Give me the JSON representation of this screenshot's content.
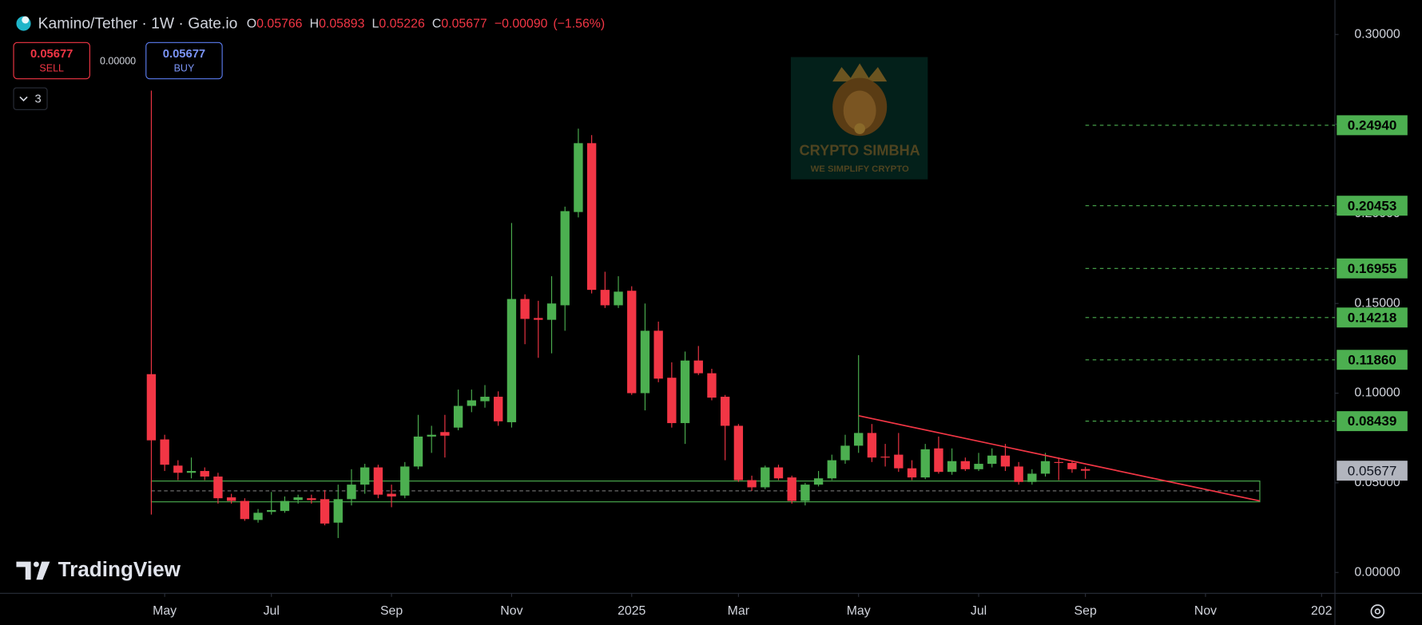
{
  "chart_data": {
    "type": "candlestick",
    "title": "Kamino/Tether · 1W · Gate.io",
    "ohlc_labels": [
      "O",
      "H",
      "L",
      "C"
    ],
    "change": "−0.00090",
    "change_pct": "(−1.56%)",
    "trade_panel": {
      "sell_price": "0.05677",
      "sell_label": "SELL",
      "spread": "0.00000",
      "buy_price": "0.05677",
      "buy_label": "BUY"
    },
    "indicator_count": "3",
    "up_color": "#4caf50",
    "down_color": "#f23645",
    "open": [
      0.1106,
      0.0742,
      0.0596,
      0.0556,
      0.0566,
      0.0535,
      0.0419,
      0.0399,
      0.0293,
      0.0338,
      0.0343,
      0.0404,
      0.0414,
      0.0409,
      0.0278,
      0.0409,
      0.049,
      0.0586,
      0.0439,
      0.0429,
      0.0591,
      0.0758,
      0.0783,
      0.0808,
      0.0929,
      0.0955,
      0.098,
      0.0838,
      0.1525,
      0.1419,
      0.1409,
      0.149,
      0.201,
      0.2394,
      0.1576,
      0.149,
      0.1571,
      0.1,
      0.1348,
      0.1086,
      0.0833,
      0.1182,
      0.1111,
      0.098,
      0.0818,
      0.0515,
      0.0475,
      0.0586,
      0.053,
      0.0399,
      0.049,
      0.0525,
      0.0626,
      0.0707,
      0.0778,
      0.0646,
      0.0657,
      0.0581,
      0.053,
      0.0692,
      0.0561,
      0.0621,
      0.0576,
      0.0606,
      0.0652,
      0.0591,
      0.0505,
      0.0551,
      0.0616,
      0.0611,
      0.05766
    ],
    "high": [
      0.2687,
      0.0768,
      0.0626,
      0.0641,
      0.0586,
      0.0556,
      0.0439,
      0.0414,
      0.0354,
      0.0449,
      0.0424,
      0.0434,
      0.0434,
      0.046,
      0.049,
      0.0576,
      0.0606,
      0.0601,
      0.049,
      0.0616,
      0.0879,
      0.0818,
      0.0879,
      0.102,
      0.102,
      0.1045,
      0.101,
      0.1949,
      0.1551,
      0.1515,
      0.1652,
      0.204,
      0.2475,
      0.2439,
      0.1677,
      0.1652,
      0.1596,
      0.15,
      0.1399,
      0.1172,
      0.1232,
      0.1263,
      0.1136,
      0.099,
      0.0828,
      0.054,
      0.0596,
      0.0601,
      0.054,
      0.05,
      0.0566,
      0.0657,
      0.0768,
      0.1212,
      0.0828,
      0.0717,
      0.0778,
      0.0626,
      0.0717,
      0.0758,
      0.0692,
      0.0641,
      0.0667,
      0.0692,
      0.0717,
      0.0616,
      0.0576,
      0.0667,
      0.0641,
      0.0626,
      0.05893
    ],
    "low": [
      0.0323,
      0.0566,
      0.0515,
      0.0525,
      0.0515,
      0.0384,
      0.0384,
      0.0288,
      0.0278,
      0.0323,
      0.0333,
      0.0384,
      0.0384,
      0.0263,
      0.0192,
      0.0374,
      0.0439,
      0.0414,
      0.0364,
      0.0414,
      0.0576,
      0.0667,
      0.0641,
      0.0793,
      0.0894,
      0.0919,
      0.0818,
      0.0808,
      0.1273,
      0.1197,
      0.1222,
      0.1348,
      0.198,
      0.1556,
      0.1475,
      0.1475,
      0.099,
      0.0904,
      0.1061,
      0.0808,
      0.0717,
      0.1101,
      0.096,
      0.0626,
      0.0505,
      0.0455,
      0.0465,
      0.0515,
      0.0384,
      0.0374,
      0.048,
      0.0515,
      0.0606,
      0.0667,
      0.0616,
      0.0591,
      0.0561,
      0.0515,
      0.052,
      0.0551,
      0.0545,
      0.0566,
      0.0566,
      0.0586,
      0.0566,
      0.049,
      0.049,
      0.0535,
      0.0515,
      0.0556,
      0.05226
    ],
    "close": [
      0.0737,
      0.0601,
      0.0556,
      0.0566,
      0.0535,
      0.0414,
      0.0399,
      0.0298,
      0.0333,
      0.0348,
      0.0399,
      0.0419,
      0.0404,
      0.0273,
      0.0409,
      0.049,
      0.0586,
      0.0434,
      0.0424,
      0.0591,
      0.0758,
      0.0768,
      0.0763,
      0.0929,
      0.096,
      0.098,
      0.0843,
      0.1525,
      0.1414,
      0.1409,
      0.15,
      0.2015,
      0.2394,
      0.1576,
      0.149,
      0.1566,
      0.1,
      0.1348,
      0.1081,
      0.0833,
      0.1182,
      0.1111,
      0.0975,
      0.0818,
      0.0515,
      0.0475,
      0.0586,
      0.0525,
      0.0399,
      0.049,
      0.0525,
      0.0626,
      0.0707,
      0.0778,
      0.0641,
      0.0641,
      0.0581,
      0.053,
      0.0687,
      0.0561,
      0.0621,
      0.0576,
      0.0606,
      0.0652,
      0.0591,
      0.0505,
      0.0551,
      0.0621,
      0.0611,
      0.0576,
      0.05677
    ],
    "xlim": [
      -11,
      88.7
    ],
    "xticks": [
      {
        "value": 1,
        "label": "May"
      },
      {
        "value": 9,
        "label": "Jul"
      },
      {
        "value": 18,
        "label": "Sep"
      },
      {
        "value": 27,
        "label": "Nov"
      },
      {
        "value": 36,
        "label": "2025"
      },
      {
        "value": 44,
        "label": "Mar"
      },
      {
        "value": 53,
        "label": "May"
      },
      {
        "value": 62,
        "label": "Jul"
      },
      {
        "value": 70,
        "label": "Sep"
      },
      {
        "value": 79,
        "label": "Nov"
      },
      {
        "value": 87.7,
        "label": "202"
      }
    ],
    "ylim": [
      -0.0116,
      0.3167
    ],
    "yticks": [
      {
        "value": 0,
        "label": "0.00000"
      },
      {
        "value": 0.05,
        "label": "0.05000"
      },
      {
        "value": 0.1,
        "label": "0.10000"
      },
      {
        "value": 0.15,
        "label": "0.15000"
      },
      {
        "value": 0.2,
        "label": "0.20000"
      },
      {
        "value": 0.25,
        "label": "0.25000"
      },
      {
        "value": 0.3,
        "label": "0.30000"
      }
    ],
    "levels": [
      {
        "value": 0.2494,
        "label": "0.24940"
      },
      {
        "value": 0.20453,
        "label": "0.20453"
      },
      {
        "value": 0.16955,
        "label": "0.16955"
      },
      {
        "value": 0.14218,
        "label": "0.14218"
      },
      {
        "value": 0.1186,
        "label": "0.11860"
      },
      {
        "value": 0.08439,
        "label": "0.08439"
      }
    ],
    "level_color": "#4caf50",
    "zone": {
      "x": [
        0,
        83.07
      ],
      "y": [
        0.0394,
        0.051
      ],
      "mid": 0.0455,
      "color": "#4caf50"
    },
    "trendline": {
      "x": [
        53,
        83.07
      ],
      "y": [
        0.0874,
        0.0399
      ],
      "color": "#f23645"
    },
    "watermark": {
      "title": "CRYPTO SIMBHA",
      "subtitle": "WE SIMPLIFY CRYPTO"
    },
    "brand": "TradingView"
  }
}
